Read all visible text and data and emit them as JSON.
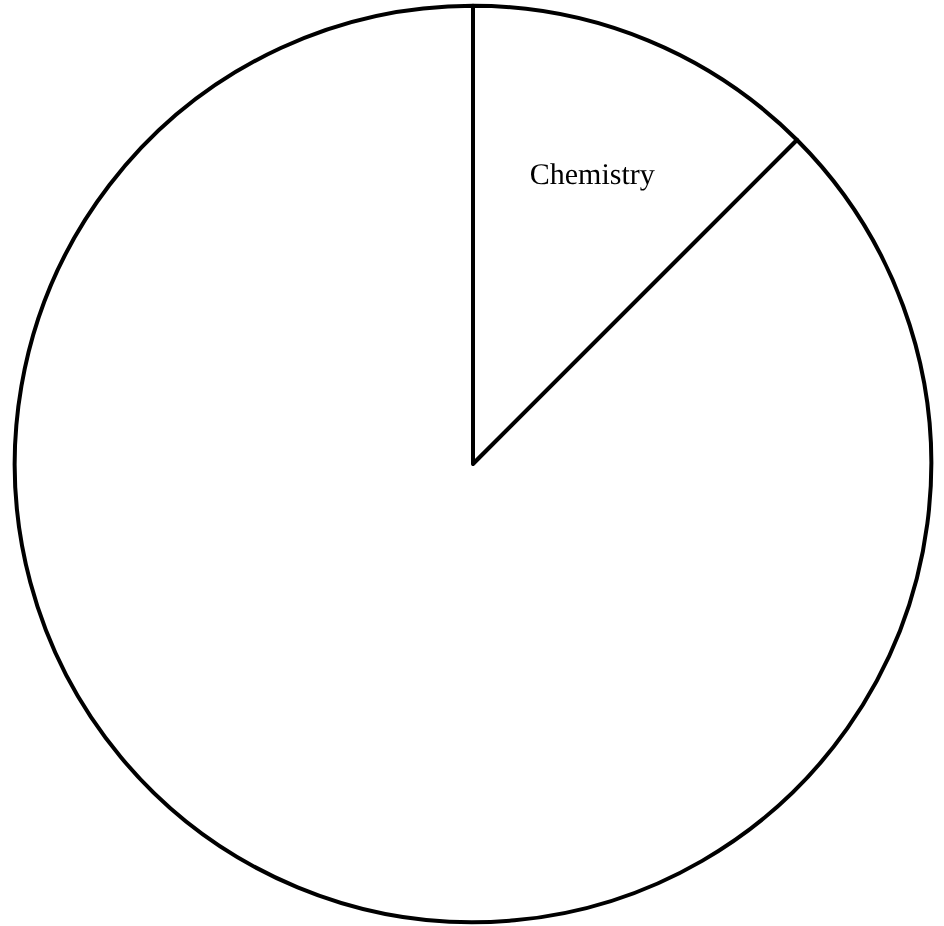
{
  "chart_data": {
    "type": "pie",
    "categories": [
      "Chemistry",
      null
    ],
    "values": [
      12.5,
      87.5
    ],
    "colors": [
      "#ffffff",
      "#ffffff"
    ]
  }
}
